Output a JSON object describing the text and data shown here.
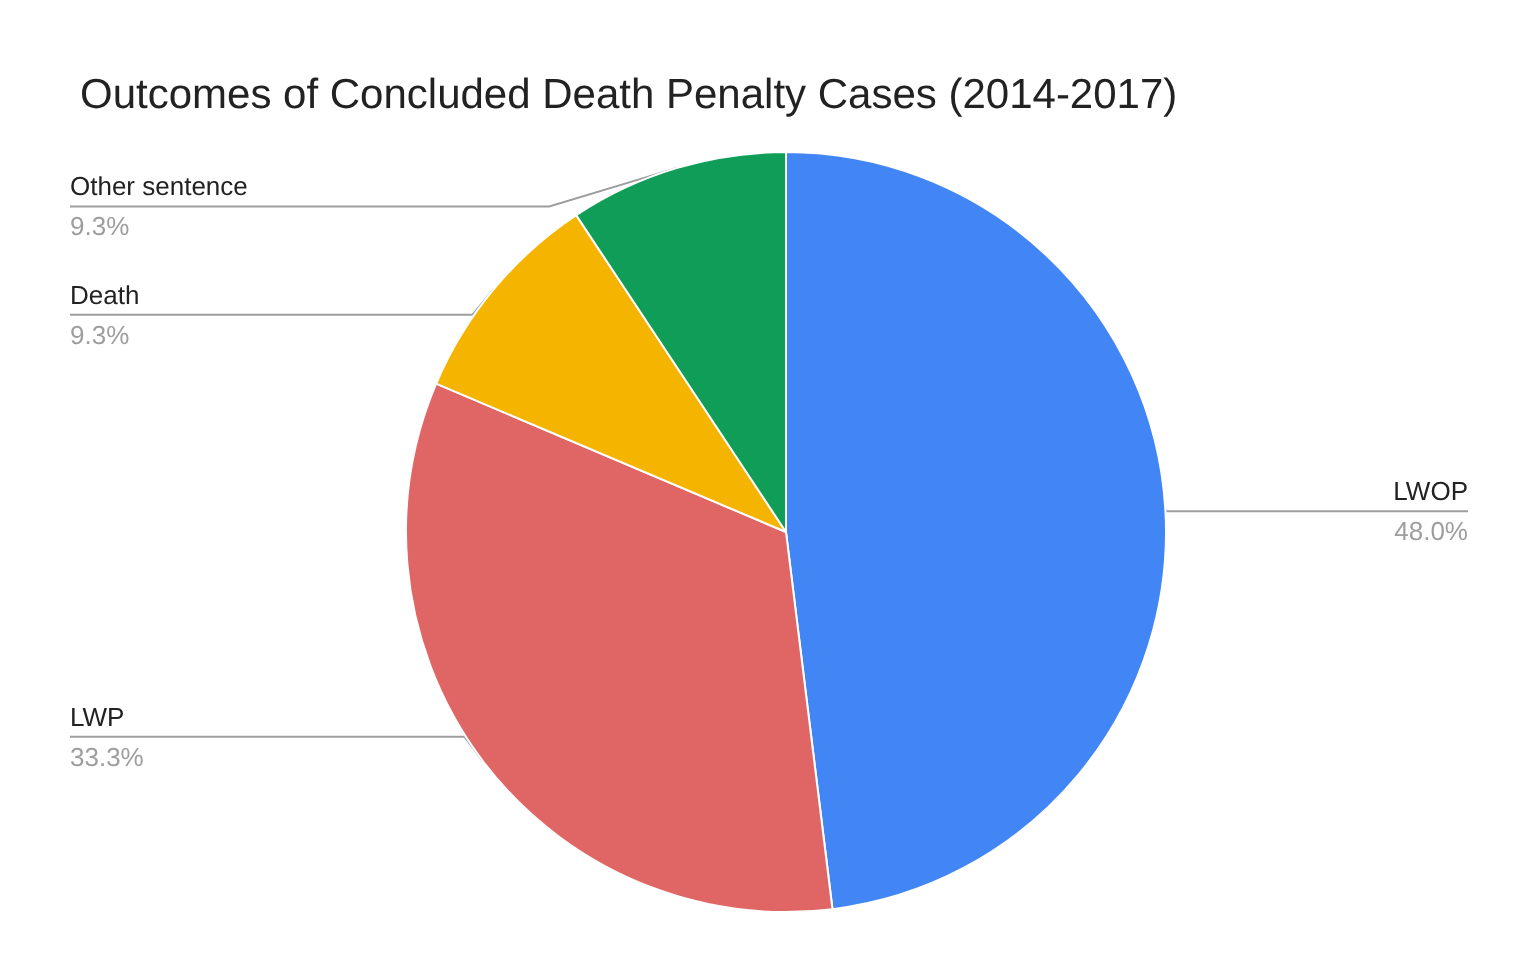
{
  "chart_data": {
    "type": "pie",
    "title": "Outcomes of Concluded Death Penalty Cases (2014-2017)",
    "categories": [
      "LWOP",
      "LWP",
      "Death",
      "Other sentence"
    ],
    "values": [
      48.0,
      33.3,
      9.3,
      9.3
    ],
    "colors": [
      "#4285f4",
      "#e06666",
      "#f4b400",
      "#0f9d58"
    ],
    "value_labels": [
      "48.0%",
      "33.3%",
      "9.3%",
      "9.3%"
    ],
    "legend": false
  }
}
